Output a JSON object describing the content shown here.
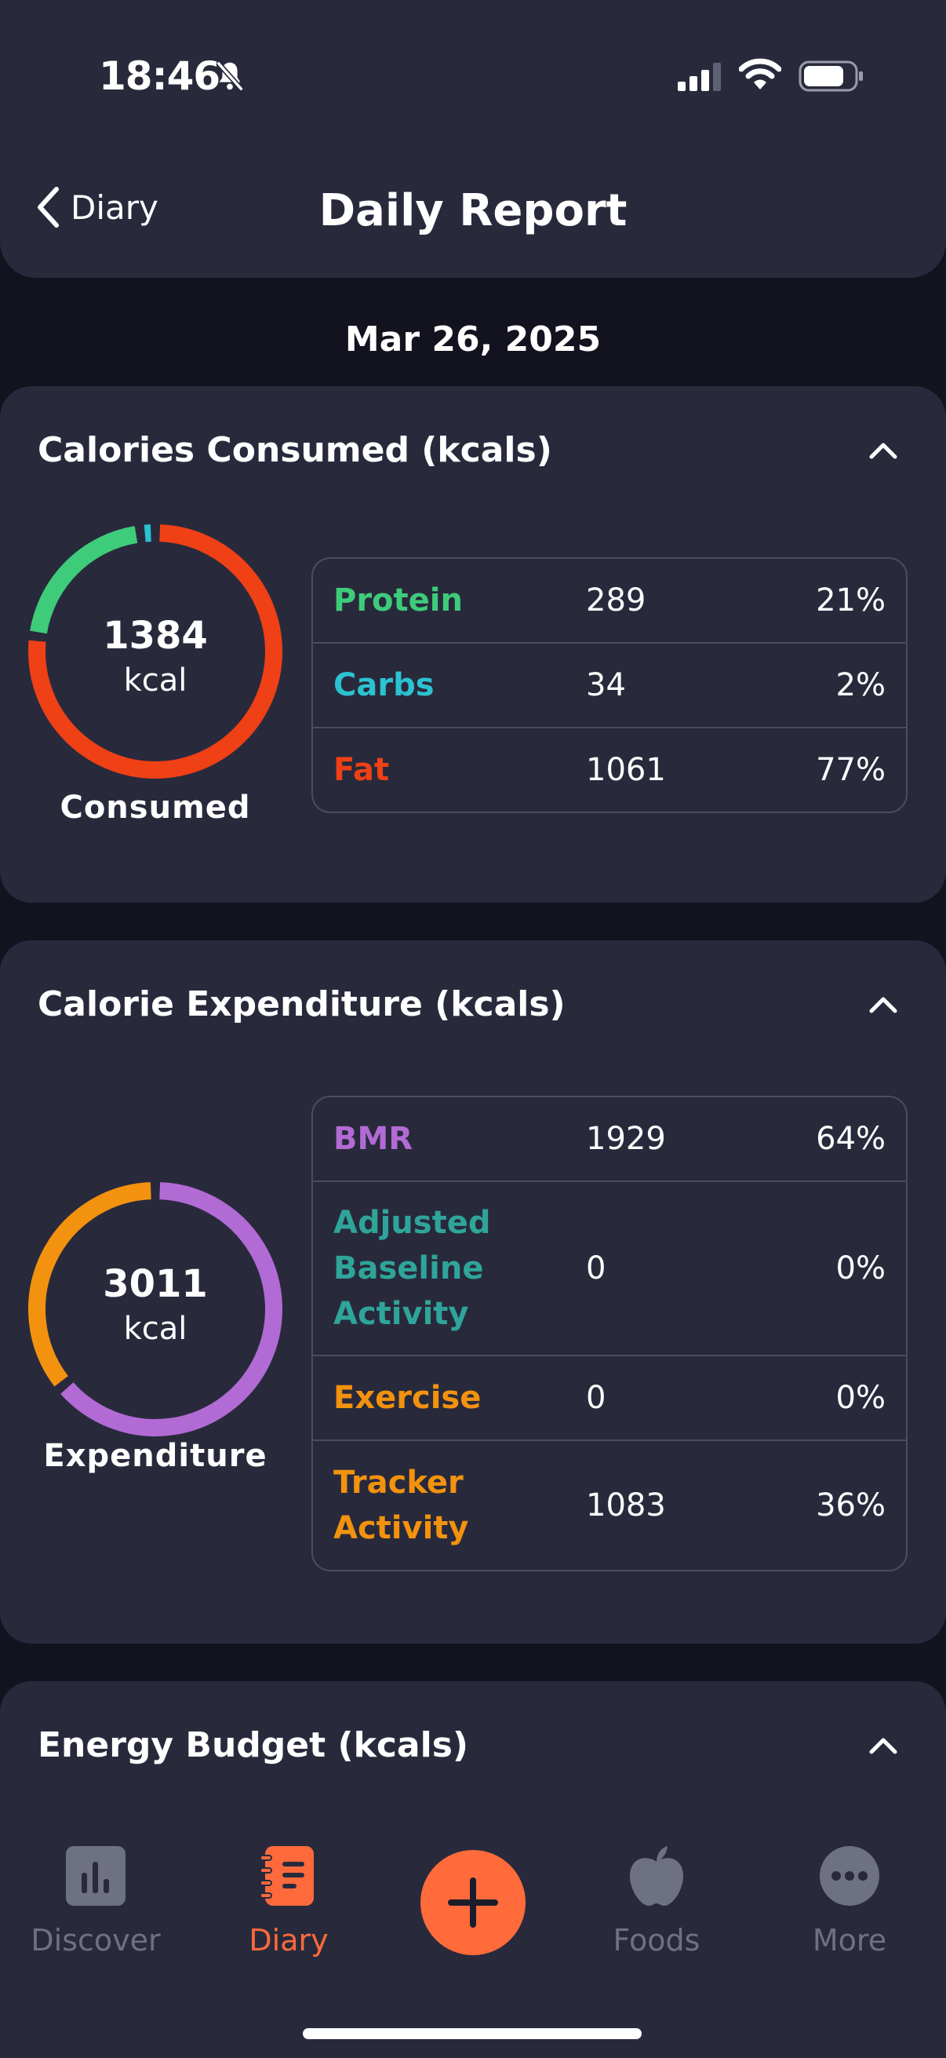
{
  "status_bar": {
    "time": "18:46"
  },
  "nav": {
    "back_label": "Diary",
    "title": "Daily Report"
  },
  "date": "Mar 26, 2025",
  "consumed": {
    "title": "Calories Consumed (kcals)",
    "total": "1384",
    "unit": "kcal",
    "label": "Consumed",
    "rows": [
      {
        "name": "Protein",
        "value": "289",
        "percent": "21%",
        "color": "#3ecc7b",
        "fraction": 0.21
      },
      {
        "name": "Carbs",
        "value": "34",
        "percent": "2%",
        "color": "#2bc3d1",
        "fraction": 0.02
      },
      {
        "name": "Fat",
        "value": "1061",
        "percent": "77%",
        "color": "#ef4016",
        "fraction": 0.77
      }
    ]
  },
  "expenditure": {
    "title": "Calorie Expenditure (kcals)",
    "total": "3011",
    "unit": "kcal",
    "label": "Expenditure",
    "rows": [
      {
        "name": "BMR",
        "value": "1929",
        "percent": "64%",
        "color": "#b26bd4",
        "fraction": 0.64
      },
      {
        "name": "Adjusted Baseline Activity",
        "value": "0",
        "percent": "0%",
        "color": "#2fa49a",
        "fraction": 0
      },
      {
        "name": "Exercise",
        "value": "0",
        "percent": "0%",
        "color": "#f3920e",
        "fraction": 0
      },
      {
        "name": "Tracker Activity",
        "value": "1083",
        "percent": "36%",
        "color": "#f3920e",
        "fraction": 0.36
      }
    ]
  },
  "energy_budget": {
    "title": "Energy Budget (kcals)"
  },
  "tabbar": {
    "items": [
      {
        "label": "Discover"
      },
      {
        "label": "Diary"
      },
      {
        "label": "Foods"
      },
      {
        "label": "More"
      }
    ]
  },
  "colors": {
    "accent": "#ff6b3a",
    "card_bg": "#282a3c",
    "page_bg": "#12131f",
    "inactive": "#6e7083"
  }
}
